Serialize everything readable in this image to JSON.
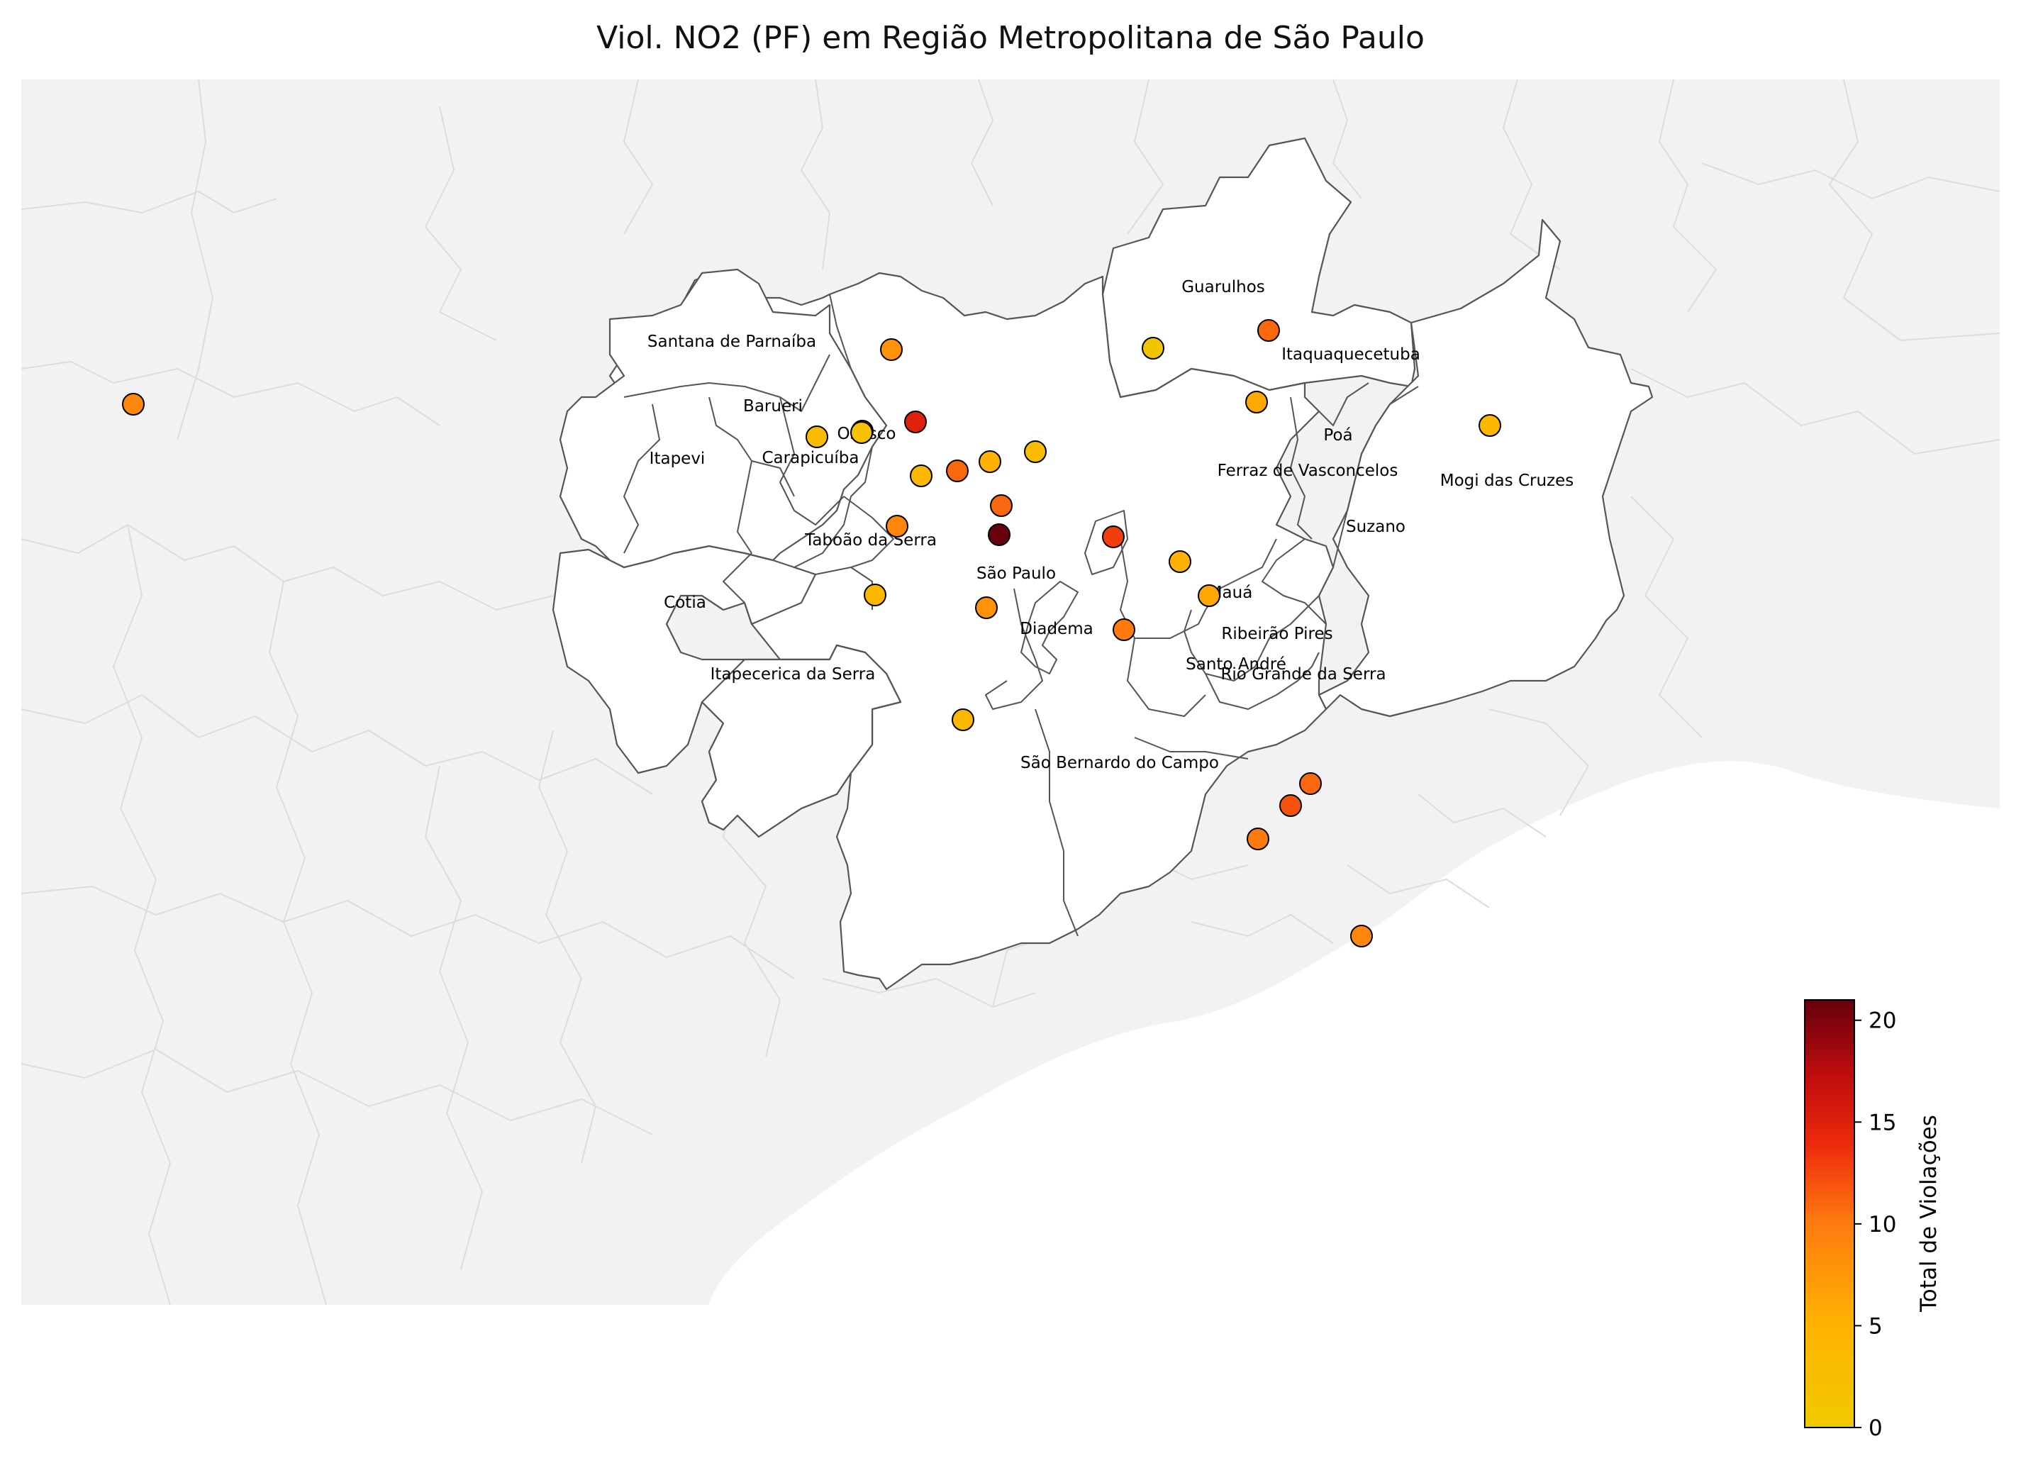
{
  "title": "Viol. NO2 (PF) em Região Metropolitana de São Paulo",
  "colorbar": {
    "label": "Total de Violações",
    "ticks": [
      0,
      5,
      10,
      15,
      20
    ],
    "min": 0,
    "max": 21,
    "colors": [
      "#efca00",
      "#ffb300",
      "#ff7a10",
      "#ee2b0c",
      "#c00d0d",
      "#67000d"
    ]
  },
  "municipalities": [
    {
      "name": "Guarulhos"
    },
    {
      "name": "Santana de Parnaíba"
    },
    {
      "name": "Itaquaquecetuba"
    },
    {
      "name": "Barueri"
    },
    {
      "name": "Osasco"
    },
    {
      "name": "Poá"
    },
    {
      "name": "Itapevi"
    },
    {
      "name": "Carapicuíba"
    },
    {
      "name": "Ferraz de Vasconcelos"
    },
    {
      "name": "Mogi das Cruzes"
    },
    {
      "name": "Suzano"
    },
    {
      "name": "Taboão da Serra"
    },
    {
      "name": "São Paulo"
    },
    {
      "name": "Mauá"
    },
    {
      "name": "Cotia"
    },
    {
      "name": "Diadema"
    },
    {
      "name": "Ribeirão Pires"
    },
    {
      "name": "Santo André"
    },
    {
      "name": "Itapecerica da Serra"
    },
    {
      "name": "Rio Grande da Serra"
    },
    {
      "name": "São Bernardo do Campo"
    }
  ],
  "stations": [
    {
      "violations": 9
    },
    {
      "violations": 8
    },
    {
      "violations": 1
    },
    {
      "violations": 11
    },
    {
      "violations": 15
    },
    {
      "violations": 3
    },
    {
      "violations": 10
    },
    {
      "violations": 4
    },
    {
      "violations": 11
    },
    {
      "violations": 5
    },
    {
      "violations": 3
    },
    {
      "violations": 11
    },
    {
      "violations": 9
    },
    {
      "violations": 2
    },
    {
      "violations": 6
    },
    {
      "violations": 21
    },
    {
      "violations": 13
    },
    {
      "violations": 5
    },
    {
      "violations": 6
    },
    {
      "violations": 4
    },
    {
      "violations": 8
    },
    {
      "violations": 10
    },
    {
      "violations": 4
    },
    {
      "violations": 11
    },
    {
      "violations": 12
    },
    {
      "violations": 10
    },
    {
      "violations": 4
    },
    {
      "violations": 9
    }
  ]
}
